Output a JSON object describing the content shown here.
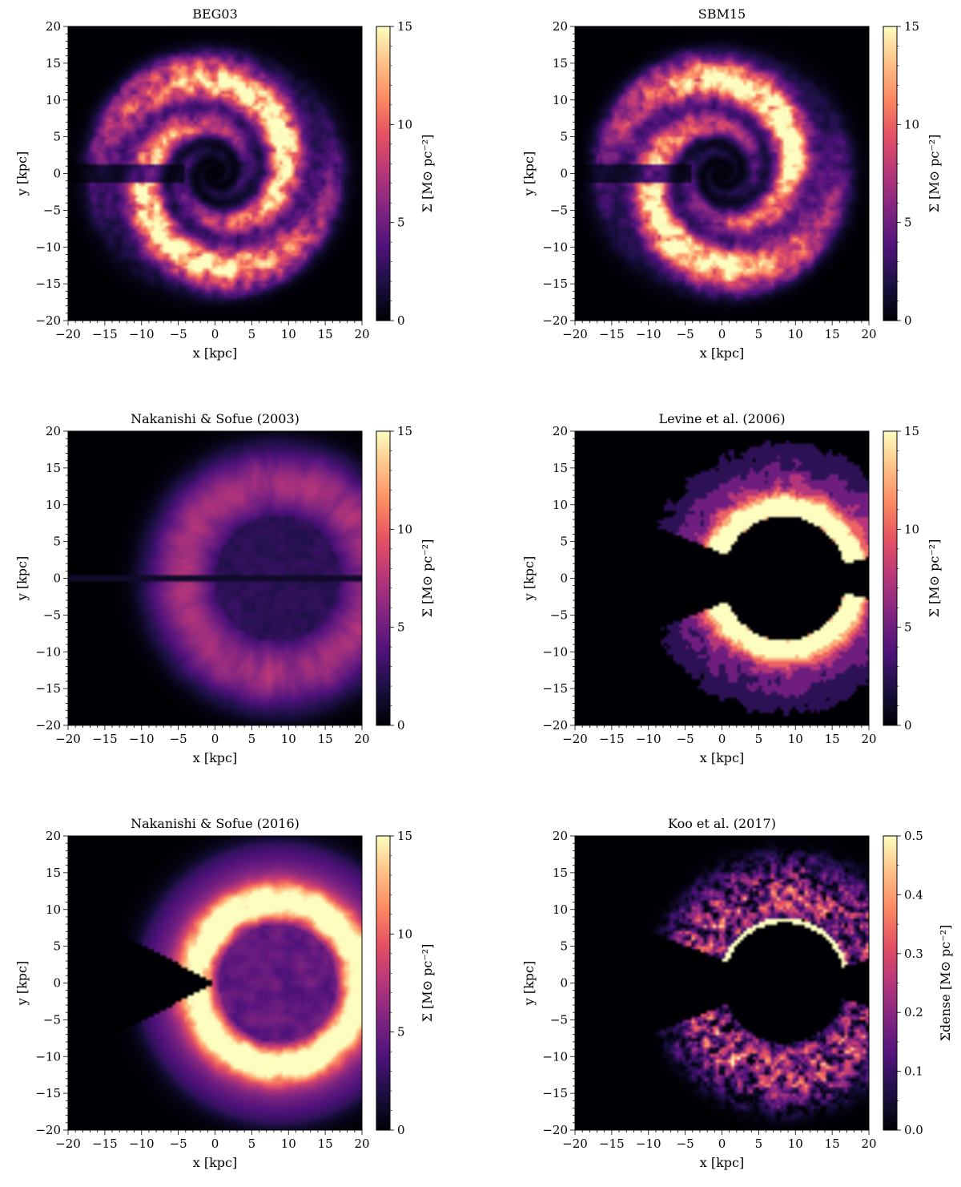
{
  "chart_data": [
    {
      "type": "heatmap",
      "title": "BEG03",
      "xlabel": "x [kpc]",
      "ylabel": "y [kpc]",
      "xlim": [
        -20,
        20
      ],
      "ylim": [
        -20,
        20
      ],
      "xticks": [
        -20,
        -15,
        -10,
        -5,
        0,
        5,
        10,
        15,
        20
      ],
      "yticks": [
        -20,
        -15,
        -10,
        -5,
        0,
        5,
        10,
        15,
        20
      ],
      "colorbar": {
        "label": "Σ [M⊙ pc⁻²]",
        "range": [
          0,
          15
        ],
        "ticks": [
          0,
          5,
          10,
          15
        ],
        "colormap": "magma"
      },
      "map_style": "spiral_full"
    },
    {
      "type": "heatmap",
      "title": "SBM15",
      "xlabel": "x [kpc]",
      "ylabel": "y [kpc]",
      "xlim": [
        -20,
        20
      ],
      "ylim": [
        -20,
        20
      ],
      "xticks": [
        -20,
        -15,
        -10,
        -5,
        0,
        5,
        10,
        15,
        20
      ],
      "yticks": [
        -20,
        -15,
        -10,
        -5,
        0,
        5,
        10,
        15,
        20
      ],
      "colorbar": {
        "label": "Σ [M⊙ pc⁻²]",
        "range": [
          0,
          15
        ],
        "ticks": [
          0,
          5,
          10,
          15
        ],
        "colormap": "magma"
      },
      "map_style": "spiral_full"
    },
    {
      "type": "heatmap",
      "title": "Nakanishi & Sofue (2003)",
      "xlabel": "x [kpc]",
      "ylabel": "y [kpc]",
      "xlim": [
        -20,
        20
      ],
      "ylim": [
        -20,
        20
      ],
      "xticks": [
        -20,
        -15,
        -10,
        -5,
        0,
        5,
        10,
        15,
        20
      ],
      "yticks": [
        -20,
        -15,
        -10,
        -5,
        0,
        5,
        10,
        15,
        20
      ],
      "colorbar": {
        "label": "Σ [M⊙ pc⁻²]",
        "range": [
          0,
          15
        ],
        "ticks": [
          0,
          5,
          10,
          15
        ],
        "colormap": "magma"
      },
      "map_style": "radial_smooth"
    },
    {
      "type": "heatmap",
      "title": "Levine et al. (2006)",
      "xlabel": "x [kpc]",
      "ylabel": "y [kpc]",
      "xlim": [
        -20,
        20
      ],
      "ylim": [
        -20,
        20
      ],
      "xticks": [
        -20,
        -15,
        -10,
        -5,
        0,
        5,
        10,
        15,
        20
      ],
      "yticks": [
        -20,
        -15,
        -10,
        -5,
        0,
        5,
        10,
        15,
        20
      ],
      "colorbar": {
        "label": "Σ [M⊙ pc⁻²]",
        "range": [
          0,
          15
        ],
        "ticks": [
          0,
          5,
          10,
          15
        ],
        "colormap": "magma"
      },
      "map_style": "masked_contour"
    },
    {
      "type": "heatmap",
      "title": "Nakanishi & Sofue (2016)",
      "xlabel": "x [kpc]",
      "ylabel": "y [kpc]",
      "xlim": [
        -20,
        20
      ],
      "ylim": [
        -20,
        20
      ],
      "xticks": [
        -20,
        -15,
        -10,
        -5,
        0,
        5,
        10,
        15,
        20
      ],
      "yticks": [
        -20,
        -15,
        -10,
        -5,
        0,
        5,
        10,
        15,
        20
      ],
      "colorbar": {
        "label": "Σ [M⊙ pc⁻²]",
        "range": [
          0,
          15
        ],
        "ticks": [
          0,
          5,
          10,
          15
        ],
        "colormap": "magma"
      },
      "map_style": "ring_wedge"
    },
    {
      "type": "heatmap",
      "title": "Koo et al. (2017)",
      "xlabel": "x [kpc]",
      "ylabel": "y [kpc]",
      "xlim": [
        -20,
        20
      ],
      "ylim": [
        -20,
        20
      ],
      "xticks": [
        -20,
        -15,
        -10,
        -5,
        0,
        5,
        10,
        15,
        20
      ],
      "yticks": [
        -20,
        -15,
        -10,
        -5,
        0,
        5,
        10,
        15,
        20
      ],
      "colorbar": {
        "label": "Σdense [M⊙ pc⁻²]",
        "range": [
          0,
          0.5
        ],
        "ticks": [
          0.0,
          0.1,
          0.2,
          0.3,
          0.4,
          0.5
        ],
        "colormap": "magma"
      },
      "map_style": "masked_clumpy"
    }
  ]
}
